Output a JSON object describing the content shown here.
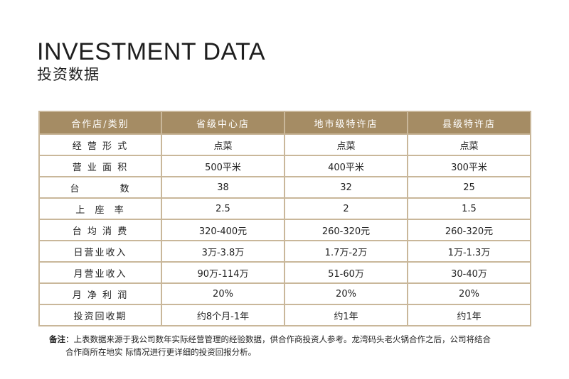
{
  "header": {
    "title_en": "INVESTMENT DATA",
    "title_cn": "投资数据"
  },
  "table": {
    "columns": [
      "合作店/类别",
      "省级中心店",
      "地市级特许店",
      "县级特许店"
    ],
    "rows": [
      {
        "label": "经 营 形 式",
        "values": [
          "点菜",
          "点菜",
          "点菜"
        ]
      },
      {
        "label": "营 业 面 积",
        "values": [
          "500平米",
          "400平米",
          "300平米"
        ]
      },
      {
        "label": "台         数",
        "values": [
          "38",
          "32",
          "25"
        ]
      },
      {
        "label": "上  座  率",
        "values": [
          "2.5",
          "2",
          "1.5"
        ]
      },
      {
        "label": "台 均 消 费",
        "values": [
          "320-400元",
          "260-320元",
          "260-320元"
        ]
      },
      {
        "label": "日营业收入",
        "values": [
          "3万-3.8万",
          "1.7万-2万",
          "1万-1.3万"
        ]
      },
      {
        "label": "月营业收入",
        "values": [
          "90万-114万",
          "51-60万",
          "30-40万"
        ]
      },
      {
        "label": "月 净 利 润",
        "values": [
          "20%",
          "20%",
          "20%"
        ]
      },
      {
        "label": "投资回收期",
        "values": [
          "约8个月-1年",
          "约1年",
          "约1年"
        ]
      }
    ],
    "colors": {
      "header_bg": "#a58c64",
      "border": "#c9b79a"
    }
  },
  "note": {
    "prefix": "备注",
    "line1": "：上表数据来源于我公司数年实际经营管理的经验数据，供合作商投资人参考。龙湾码头老火锅合作之后，公司将结合",
    "line2": "合作商所在地实 际情况进行更详细的投资回报分析。"
  }
}
